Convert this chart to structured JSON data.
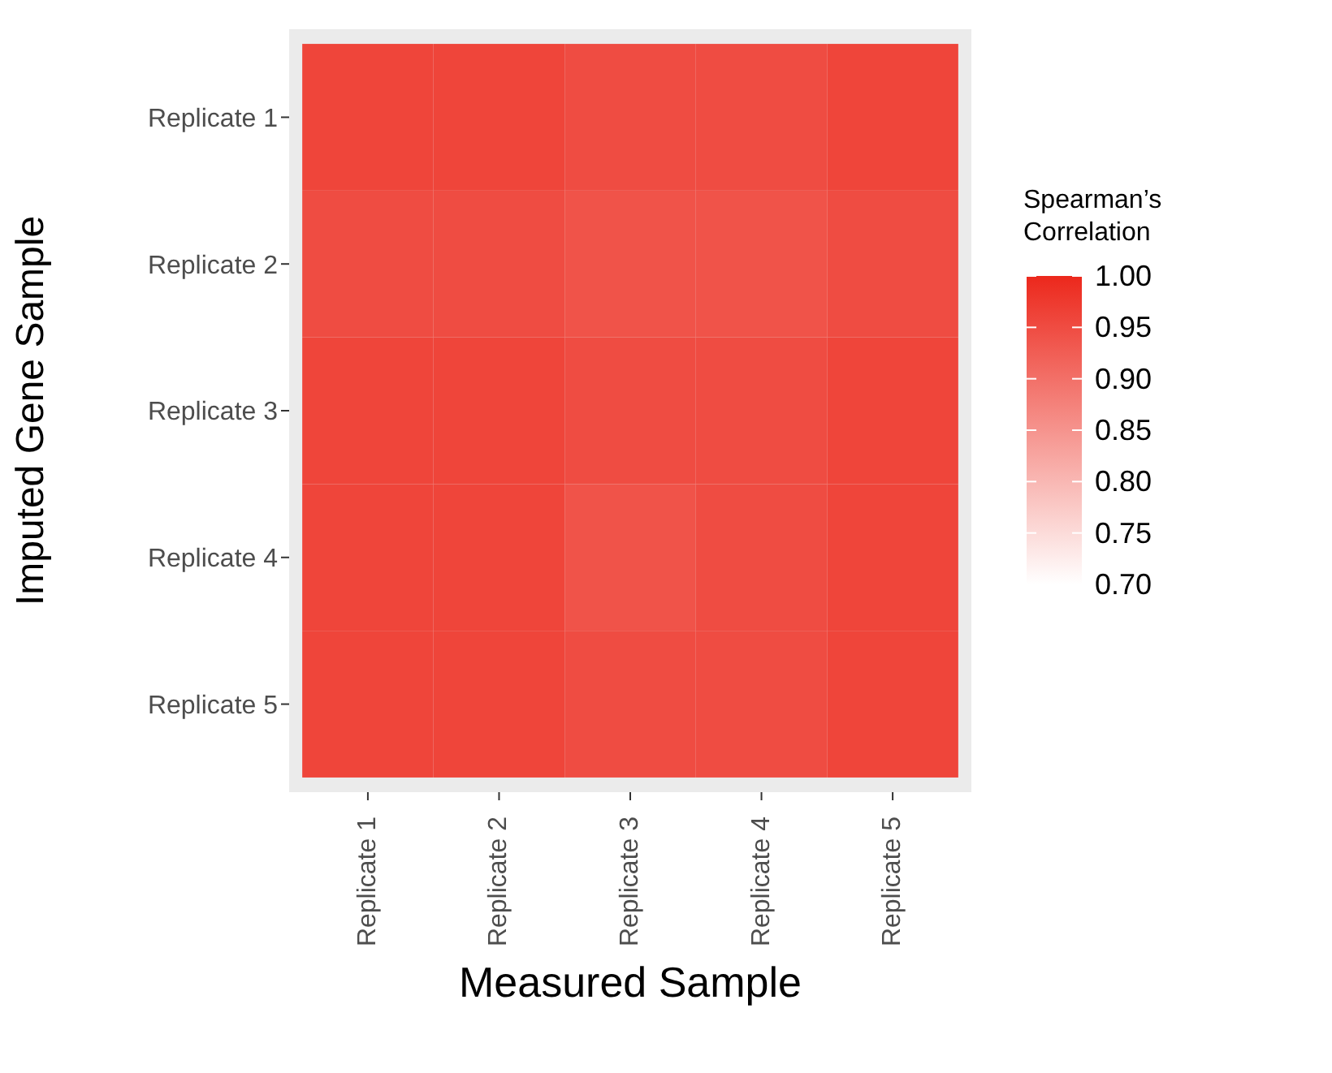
{
  "chart_data": {
    "type": "heatmap",
    "xlabel": "Measured Sample",
    "ylabel": "Imputed Gene Sample",
    "clabel": "Spearman’s Correlation",
    "categories": [
      "Replicate 1",
      "Replicate 2",
      "Replicate 3",
      "Replicate 4",
      "Replicate 5"
    ],
    "y_categories": [
      "Replicate 1",
      "Replicate 2",
      "Replicate 3",
      "Replicate 4",
      "Replicate 5"
    ],
    "cells": [
      [
        0.96,
        0.96,
        0.95,
        0.95,
        0.96
      ],
      [
        0.95,
        0.95,
        0.94,
        0.94,
        0.95
      ],
      [
        0.96,
        0.96,
        0.95,
        0.95,
        0.96
      ],
      [
        0.96,
        0.96,
        0.94,
        0.95,
        0.96
      ],
      [
        0.96,
        0.96,
        0.95,
        0.95,
        0.96
      ]
    ],
    "clim": [
      0.7,
      1.0
    ],
    "cticks": [
      {
        "value": 1.0,
        "label": "1.00"
      },
      0.95,
      {
        "value": 0.9,
        "label": "0.90"
      },
      0.85,
      {
        "value": 0.8,
        "label": "0.80"
      },
      0.75,
      {
        "value": 0.7,
        "label": "0.70"
      }
    ]
  }
}
